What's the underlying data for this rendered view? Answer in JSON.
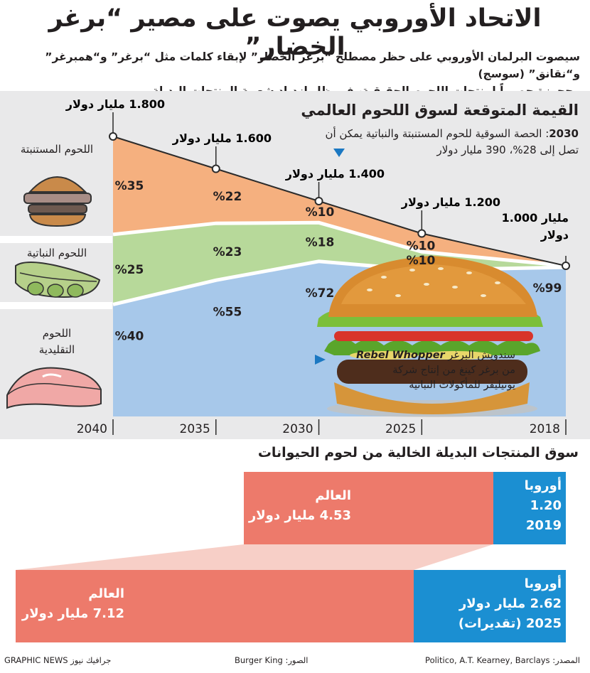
{
  "title": "الاتحاد الأوروبي يصوت على مصير “برغر الخضار”",
  "subtitle": {
    "line1": "سيصوت البرلمان الأوروبي على حظر مصطلح “برغر الخضار” لإبقاء كلمات مثل “برغر” و“همبرغر” و“نقانق” (سوسج)",
    "line2": "محجوزة حصرياً لمنتجات اللحوم الحقيقية، في ظل ازدياد شعبية المنتجات البديلة"
  },
  "legend": {
    "cultured": "اللحوم المستنبتة",
    "plant": "اللحوم النباتية",
    "traditional_1": "اللحوم",
    "traditional_2": "التقليدية"
  },
  "note": {
    "year": "2030",
    "text": "الحصة السوقية للحوم المستنبتة والنباتية يمكن أن تصل إلى 28%، 390 مليار دولار"
  },
  "rebel_whopper": {
    "name": "Rebel Whopper",
    "line1": "سندويش البرغر",
    "line2": "من برغر كينغ من إنتاج شركة",
    "line3": "يونيليفر للمأكولات النباتية"
  },
  "chart_data": [
    {
      "type": "area",
      "title": "القيمة المتوقعة لسوق اللحوم العالمي",
      "x": [
        2018,
        2025,
        2030,
        2035,
        2040
      ],
      "x_tick_labels": [
        "2018",
        "2025",
        "2030",
        "2035",
        "2040"
      ],
      "x_axis_direction": "right-to-left",
      "total_value_labels": [
        "1.000 مليار دولار",
        "1.200 مليار دولار",
        "1.400 مليار دولار",
        "1.600 مليار دولار",
        "1.800 مليار دولار"
      ],
      "total_value_billion_usd": [
        1000,
        1200,
        1400,
        1600,
        1800
      ],
      "stacking": "percent",
      "series": [
        {
          "name": "اللحوم المستنبتة",
          "color": "#f5b07f",
          "values": [
            0,
            10,
            10,
            22,
            35
          ],
          "labels": [
            "",
            "%10",
            "%10",
            "%22",
            "%35"
          ]
        },
        {
          "name": "اللحوم النباتية",
          "color": "#b7d99a",
          "values": [
            1,
            10,
            18,
            23,
            25
          ],
          "labels": [
            "",
            "%10",
            "%18",
            "%23",
            "%25"
          ]
        },
        {
          "name": "اللحوم التقليدية",
          "color": "#a7c8ea",
          "values": [
            99,
            80,
            72,
            55,
            40
          ],
          "labels": [
            "%99",
            "",
            "%72",
            "%55",
            "%40"
          ]
        }
      ]
    },
    {
      "type": "bar",
      "orientation": "horizontal-stacked",
      "title": "سوق المنتجات البديلة الخالية من لحوم الحيوانات",
      "categories": [
        "2019",
        "2025 (تقديرات)"
      ],
      "series": [
        {
          "name": "أوروبا",
          "color": "#1b8fd2",
          "values": [
            1.2,
            2.62
          ]
        },
        {
          "name": "العالم",
          "color": "#ed7a6b",
          "values": [
            4.53,
            7.12
          ]
        }
      ],
      "unit": "مليار دولار"
    }
  ],
  "bars": {
    "bar2019": {
      "europe_label": "أوروبا",
      "europe_value": "1.20",
      "year": "2019",
      "world_label": "العالم",
      "world_value": "4.53 مليار دولار"
    },
    "bar2025": {
      "europe_label": "أوروبا",
      "europe_value": "2.62 مليار دولار",
      "year": "2025 (تقديرات)",
      "world_label": "العالم",
      "world_value": "7.12 مليار دولار"
    }
  },
  "footer": {
    "source_label": "المصدر:",
    "source": "Politico, A.T. Kearney, Barclays",
    "photo_label": "الصور:",
    "photo": "Burger King",
    "brand_en": "GRAPHIC NEWS",
    "brand_ar": "جرافيك نيوز"
  },
  "colors": {
    "cultured": "#f5b07f",
    "plant": "#b7d99a",
    "traditional": "#a7c8ea",
    "europe": "#1b8fd2",
    "world": "#ed7a6b",
    "panel": "#e9e9ea"
  },
  "icons": [
    "burger-icon",
    "pea-pod-icon",
    "steak-icon",
    "burger-photo",
    "triangle-marker-icon"
  ]
}
